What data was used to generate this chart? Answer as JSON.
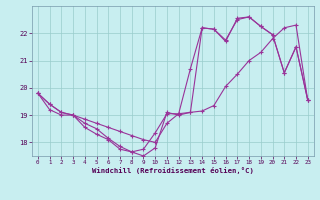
{
  "background_color": "#c8eef0",
  "grid_color": "#99cccc",
  "line_color": "#993399",
  "xlabel": "Windchill (Refroidissement éolien,°C)",
  "xlim": [
    -0.5,
    23.5
  ],
  "ylim": [
    17.5,
    23.0
  ],
  "x_ticks": [
    0,
    1,
    2,
    3,
    4,
    5,
    6,
    7,
    8,
    9,
    10,
    11,
    12,
    13,
    14,
    15,
    16,
    17,
    18,
    19,
    20,
    21,
    22,
    23
  ],
  "y_ticks": [
    18,
    19,
    20,
    21,
    22
  ],
  "line1_x": [
    0,
    1,
    2,
    3,
    4,
    5,
    6,
    7,
    8,
    9,
    10,
    11,
    12,
    13,
    14,
    15,
    16,
    17,
    18,
    19,
    20,
    21,
    22,
    23
  ],
  "line1_y": [
    19.8,
    19.2,
    19.0,
    19.0,
    18.7,
    18.5,
    18.15,
    17.85,
    17.65,
    17.75,
    18.35,
    19.05,
    19.05,
    20.7,
    22.2,
    22.15,
    21.75,
    22.5,
    22.6,
    22.25,
    21.95,
    20.55,
    21.5,
    19.55
  ],
  "line2_x": [
    0,
    1,
    2,
    3,
    4,
    5,
    6,
    7,
    8,
    9,
    10,
    11,
    12,
    13,
    14,
    15,
    16,
    17,
    18,
    19,
    20,
    21,
    22,
    23
  ],
  "line2_y": [
    19.8,
    19.4,
    19.1,
    19.0,
    18.85,
    18.7,
    18.55,
    18.4,
    18.25,
    18.1,
    18.0,
    18.7,
    19.05,
    19.1,
    19.15,
    19.35,
    20.05,
    20.5,
    21.0,
    21.3,
    21.8,
    22.2,
    22.3,
    19.55
  ],
  "line3_x": [
    0,
    1,
    2,
    3,
    4,
    5,
    6,
    7,
    8,
    9,
    10,
    11,
    12,
    13,
    14,
    15,
    16,
    17,
    18,
    19,
    20,
    21,
    22,
    23
  ],
  "line3_y": [
    19.8,
    19.4,
    19.1,
    19.0,
    18.55,
    18.3,
    18.1,
    17.75,
    17.65,
    17.5,
    17.8,
    19.1,
    19.0,
    19.1,
    22.2,
    22.15,
    21.7,
    22.55,
    22.6,
    22.25,
    21.95,
    20.55,
    21.5,
    19.55
  ]
}
